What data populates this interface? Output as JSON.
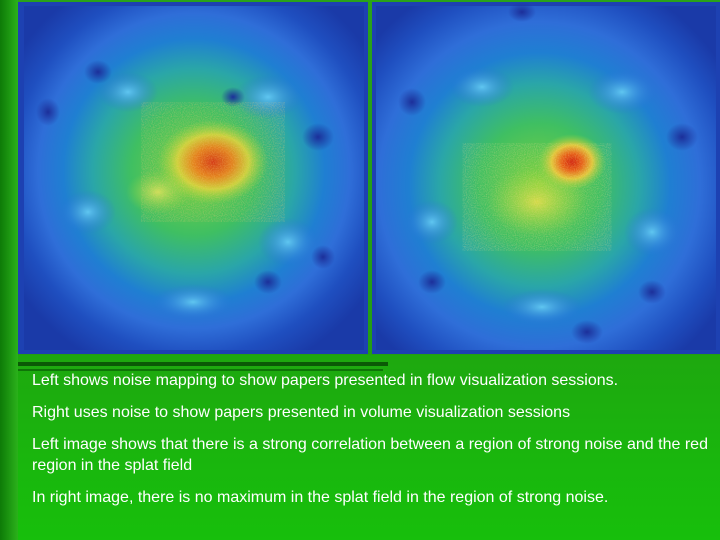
{
  "images": {
    "left": {
      "icon": "splat-field-heatmap-icon"
    },
    "right": {
      "icon": "splat-field-heatmap-icon"
    }
  },
  "captions": [
    "Left shows noise mapping to show papers presented in flow visualization sessions.",
    "Right uses noise to show papers presented in volume visualization sessions",
    "Left image shows that there is a strong correlation between a region of strong noise and the red region in the splat field",
    "In right image, there is no maximum in the splat field in the region of strong noise."
  ],
  "colors": {
    "background": "#1f9a12",
    "text": "#ffffff",
    "heat_low": "#1e3fb4",
    "heat_mid": "#3dbf6a",
    "heat_high": "#e02010"
  }
}
